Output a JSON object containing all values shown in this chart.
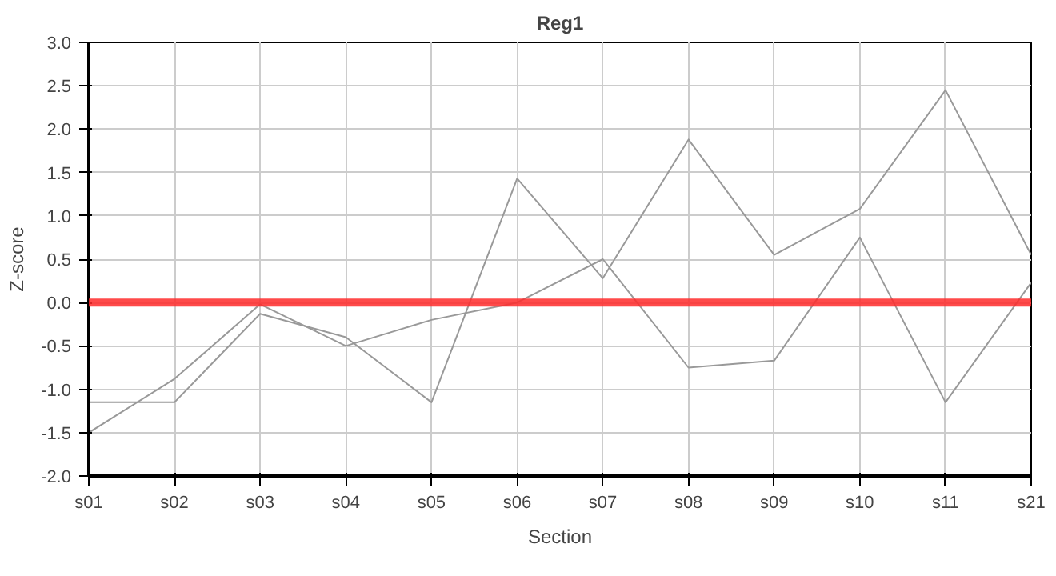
{
  "chart_data": {
    "type": "line",
    "title": "Reg1",
    "xlabel": "Section",
    "ylabel": "Z-score",
    "categories": [
      "s01",
      "s02",
      "s03",
      "s04",
      "s05",
      "s06",
      "s07",
      "s08",
      "s09",
      "s10",
      "s11",
      "s21"
    ],
    "series": [
      {
        "color": "#999999",
        "values": [
          -1.5,
          -0.88,
          -0.02,
          -0.5,
          -0.2,
          0,
          0.5,
          -0.75,
          -0.67,
          0.75,
          -1.15,
          0.23
        ]
      },
      {
        "color": "#999999",
        "values": [
          -1.15,
          -1.15,
          -0.13,
          -0.4,
          -1.15,
          1.43,
          0.28,
          1.88,
          0.55,
          1.08,
          2.45,
          0.55
        ]
      }
    ],
    "ylim": [
      -2.0,
      3.0
    ],
    "yticks": [
      {
        "value": -2,
        "label": "-2.0"
      },
      {
        "value": -1.5,
        "label": "-1.5"
      },
      {
        "value": -1,
        "label": "-1.0"
      },
      {
        "value": -0.5,
        "label": "-0.5"
      },
      {
        "value": 0,
        "label": "0.0"
      },
      {
        "value": 0.5,
        "label": "0.5"
      },
      {
        "value": 1,
        "label": "1.0"
      },
      {
        "value": 1.5,
        "label": "1.5"
      },
      {
        "value": 2,
        "label": "2.0"
      },
      {
        "value": 2.5,
        "label": "2.5"
      },
      {
        "value": 3,
        "label": "3.0"
      }
    ],
    "ref_lines": [
      {
        "axis": "y",
        "value": 0,
        "color": "#ff2a2a"
      }
    ],
    "grid": true
  }
}
